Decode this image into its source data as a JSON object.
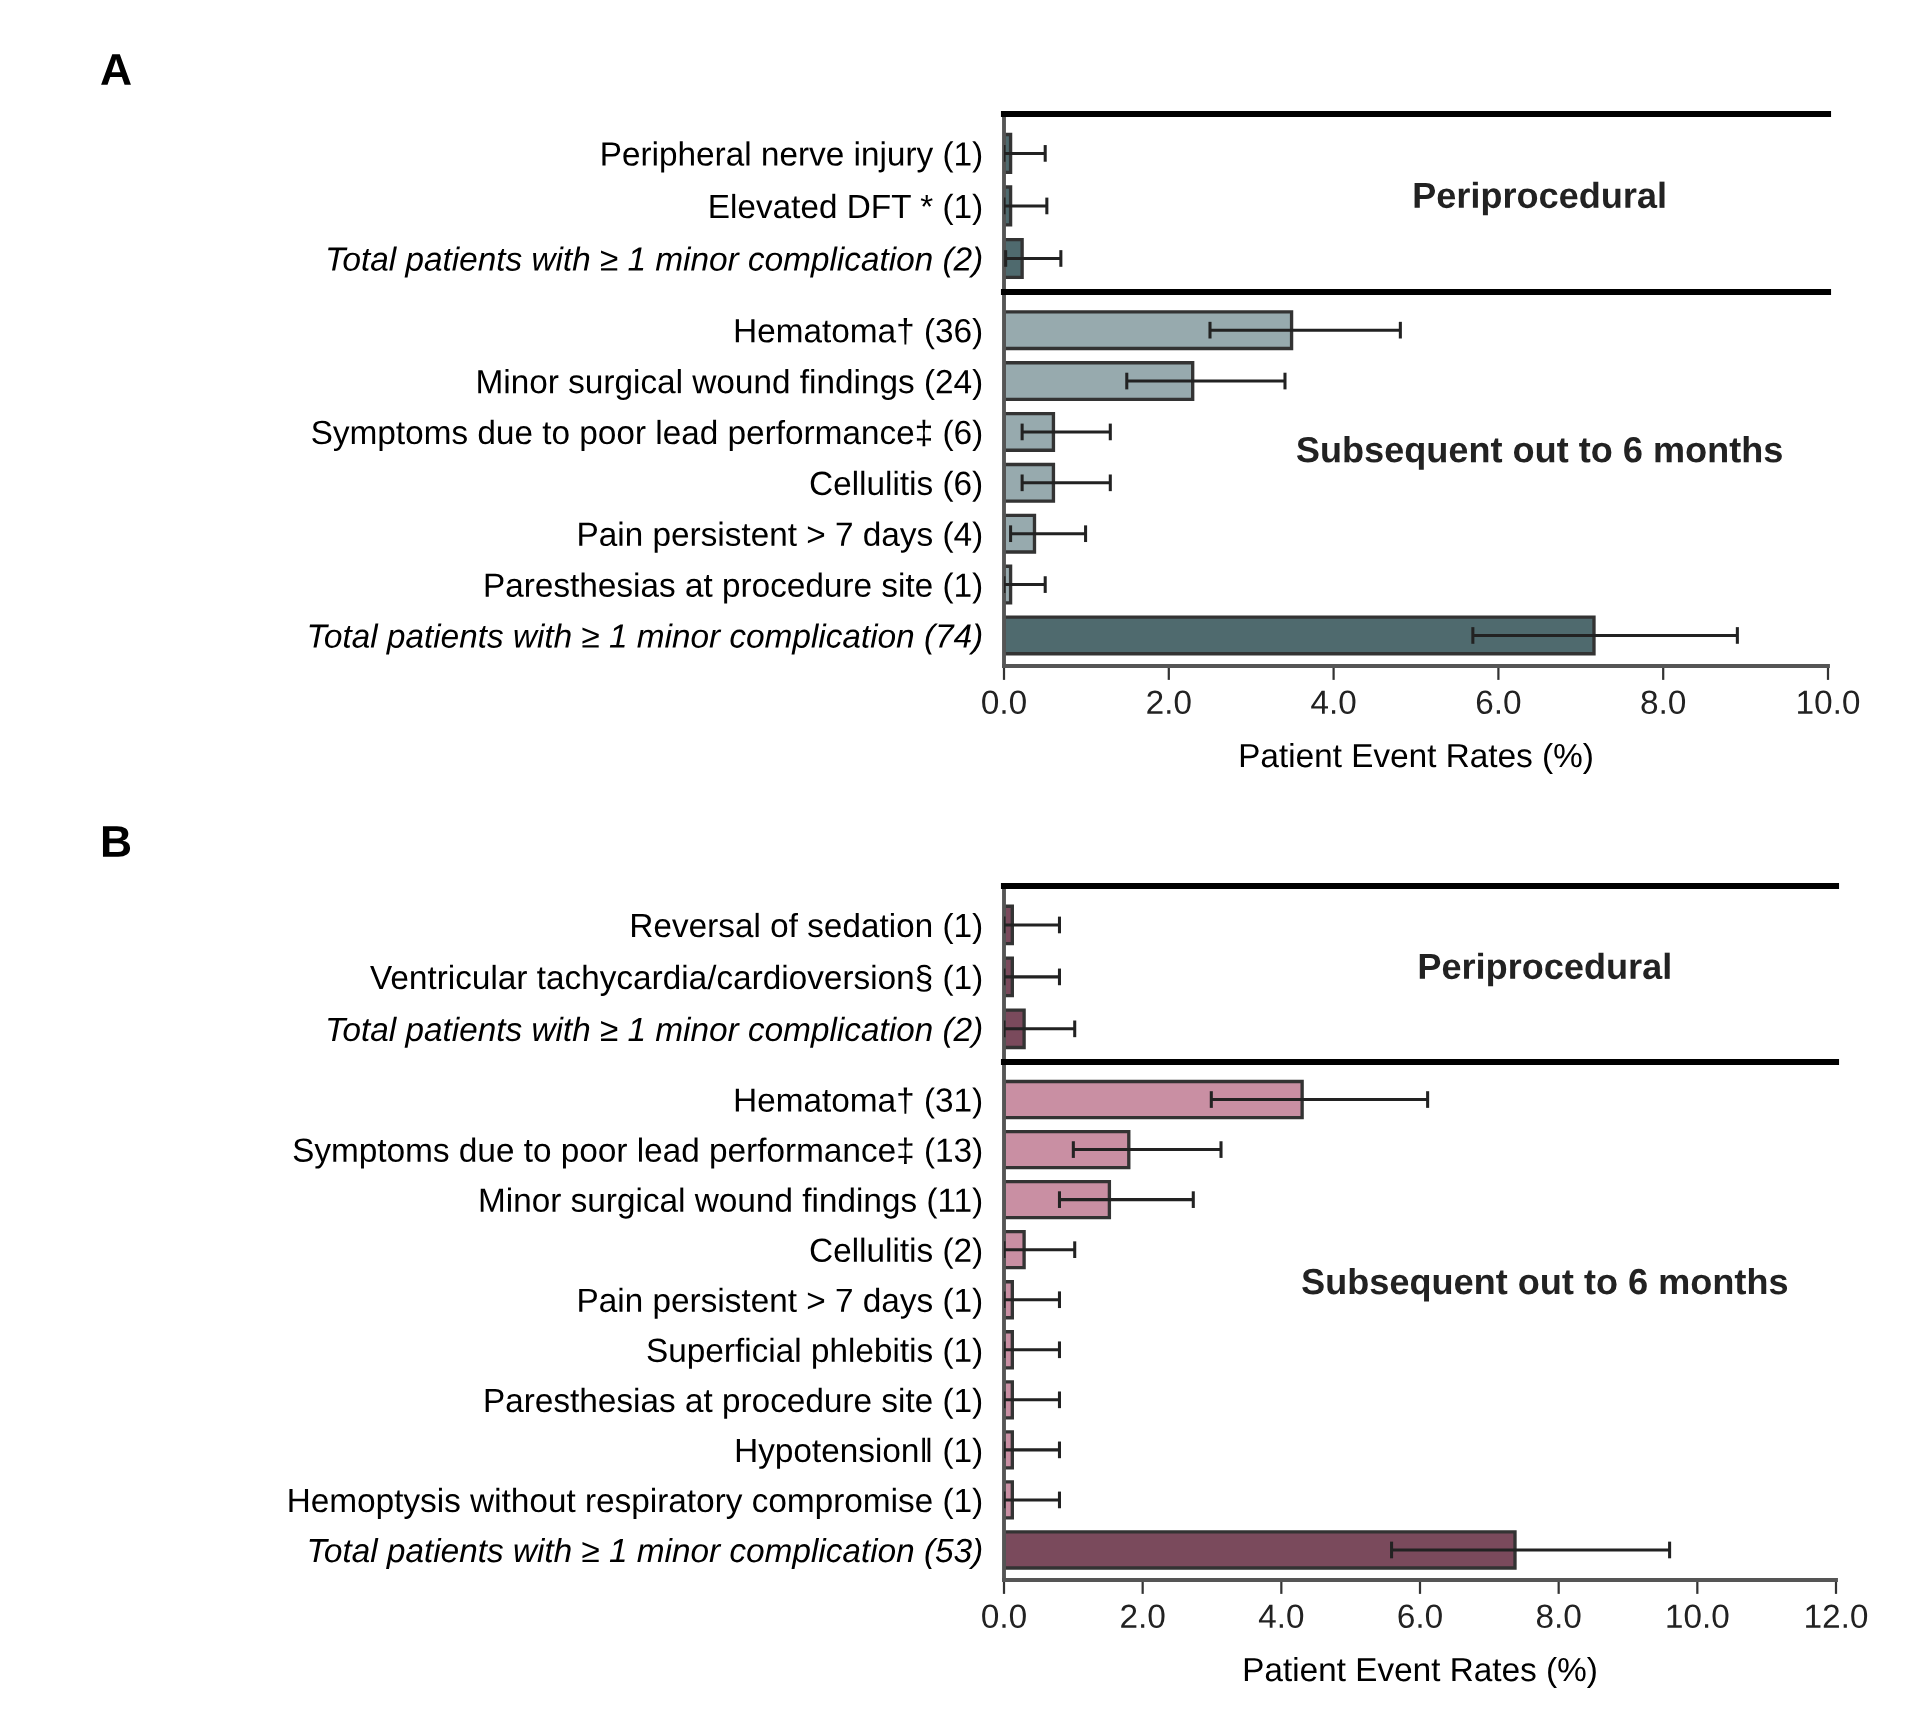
{
  "chart_data": [
    {
      "type": "bar",
      "orientation": "horizontal",
      "title": "A",
      "tick_labels": "y",
      "xlim": [
        0,
        10
      ],
      "annotations": [
        "Periprocedural"
      ],
      "categories": [
        "Peripheral nerve injury (1)",
        "Elevated DFT * (1)",
        "Total patients with ≥ 1 minor complication (2)"
      ],
      "values": [
        0.08,
        0.08,
        0.22
      ],
      "colors": [
        "#4f6a6e",
        "#4f6a6e",
        "#4f6a6e"
      ],
      "errors": [
        [
          0.0,
          0.5
        ],
        [
          0.0,
          0.52
        ],
        [
          0.02,
          0.69
        ]
      ]
    },
    {
      "type": "bar",
      "orientation": "horizontal",
      "xlabel": "Patient Event Rates (%)",
      "xlim": [
        0,
        10
      ],
      "xticks": [
        {
          "value": 0,
          "label": "0.0"
        },
        {
          "value": 2,
          "label": "2.0"
        },
        {
          "value": 4,
          "label": "4.0"
        },
        {
          "value": 6,
          "label": "6.0"
        },
        {
          "value": 8,
          "label": "8.0"
        },
        {
          "value": 10,
          "label": "10.0"
        }
      ],
      "annotations": [
        "Subsequent out to 6 months"
      ],
      "categories": [
        "Hematoma† (36)",
        "Minor surgical wound findings (24)",
        "Symptoms due to poor lead performance‡ (6)",
        "Cellulitis (6)",
        "Pain persistent > 7 days (4)",
        "Paresthesias at procedure site (1)",
        "Total patients with ≥ 1 minor complication (74)"
      ],
      "values": [
        3.49,
        2.29,
        0.6,
        0.6,
        0.37,
        0.08,
        7.16
      ],
      "colors": [
        "#97aaae",
        "#97aaae",
        "#97aaae",
        "#97aaae",
        "#97aaae",
        "#97aaae",
        "#4f6a6e"
      ],
      "errors": [
        [
          2.5,
          4.81
        ],
        [
          1.49,
          3.41
        ],
        [
          0.22,
          1.29
        ],
        [
          0.22,
          1.29
        ],
        [
          0.08,
          0.99
        ],
        [
          0.0,
          0.5
        ],
        [
          5.69,
          8.9
        ]
      ]
    },
    {
      "type": "bar",
      "orientation": "horizontal",
      "title": "B",
      "tick_labels": "y",
      "xlim": [
        0,
        12
      ],
      "annotations": [
        "Periprocedural"
      ],
      "categories": [
        "Reversal of sedation (1)",
        "Ventricular tachycardia/cardioversion§ (1)",
        "Total patients with ≥ 1 minor complication (2)"
      ],
      "values": [
        0.12,
        0.12,
        0.29
      ],
      "colors": [
        "#7a4a5c",
        "#7a4a5c",
        "#7a4a5c"
      ],
      "errors": [
        [
          0.0,
          0.8
        ],
        [
          0.0,
          0.8
        ],
        [
          0.0,
          1.02
        ]
      ]
    },
    {
      "type": "bar",
      "orientation": "horizontal",
      "xlabel": "Patient Event Rates (%)",
      "xlim": [
        0,
        12
      ],
      "xticks": [
        {
          "value": 0,
          "label": "0.0"
        },
        {
          "value": 2,
          "label": "2.0"
        },
        {
          "value": 4,
          "label": "4.0"
        },
        {
          "value": 6,
          "label": "6.0"
        },
        {
          "value": 8,
          "label": "8.0"
        },
        {
          "value": 10,
          "label": "10.0"
        },
        {
          "value": 12,
          "label": "12.0"
        }
      ],
      "annotations": [
        "Subsequent out to 6 months"
      ],
      "categories": [
        "Hematoma† (31)",
        "Symptoms due to poor lead performance‡ (13)",
        "Minor surgical wound findings (11)",
        "Cellulitis (2)",
        "Pain persistent > 7 days (1)",
        "Superficial phlebitis (1)",
        "Paresthesias at procedure site (1)",
        "Hypotension‖ (1)",
        "Hemoptysis without respiratory compromise (1)",
        "Total patients with ≥ 1 minor complication (53)"
      ],
      "values": [
        4.3,
        1.8,
        1.52,
        0.29,
        0.12,
        0.12,
        0.12,
        0.12,
        0.12,
        7.37
      ],
      "colors": [
        "#c98fa3",
        "#c98fa3",
        "#c98fa3",
        "#c98fa3",
        "#c98fa3",
        "#c98fa3",
        "#c98fa3",
        "#c98fa3",
        "#c98fa3",
        "#7a4a5c"
      ],
      "errors": [
        [
          2.99,
          6.11
        ],
        [
          1.0,
          3.13
        ],
        [
          0.8,
          2.73
        ],
        [
          0.0,
          1.02
        ],
        [
          0.0,
          0.8
        ],
        [
          0.0,
          0.8
        ],
        [
          0.0,
          0.8
        ],
        [
          0.0,
          0.8
        ],
        [
          0.0,
          0.8
        ],
        [
          5.59,
          9.6
        ]
      ]
    }
  ]
}
